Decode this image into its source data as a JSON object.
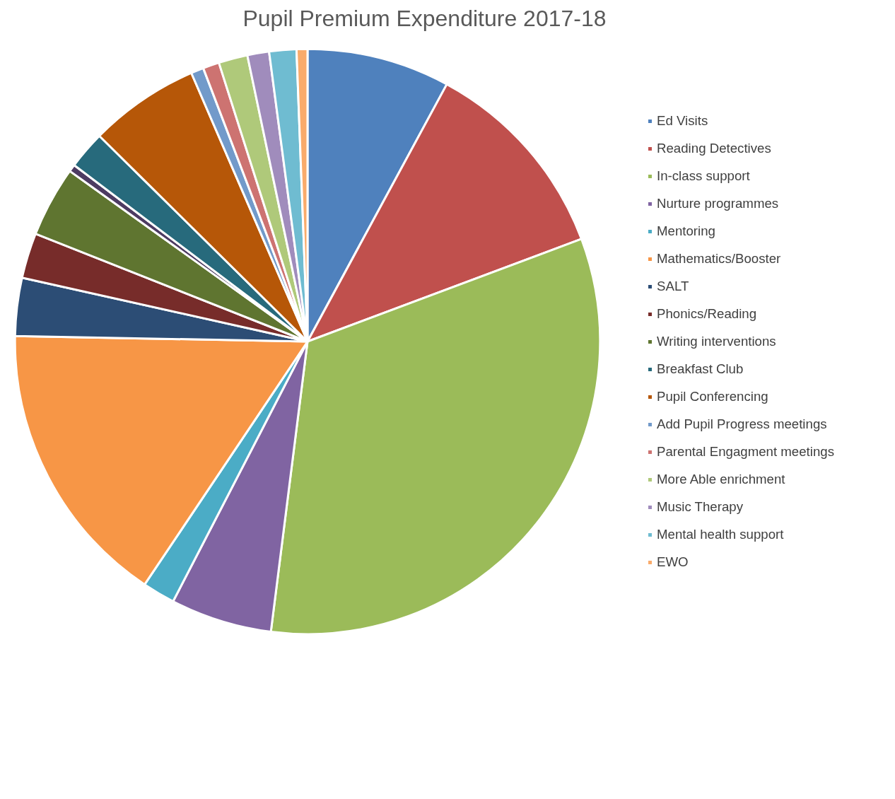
{
  "chart_data": {
    "type": "pie",
    "title": "Pupil Premium Expenditure 2017-18",
    "categories": [
      "Ed Visits",
      "Reading Detectives",
      "In-class support",
      "Nurture programmes",
      "Mentoring",
      "Mathematics/Booster",
      "SALT",
      "Phonics/Reading",
      "Writing interventions",
      null,
      "Breakfast Club",
      "Pupil Conferencing",
      "Add Pupil Progress meetings",
      "Parental Engagment meetings",
      "More Able enrichment",
      "Music Therapy",
      "Mental health support",
      "EWO"
    ],
    "values": [
      7.9,
      11.4,
      32.7,
      5.6,
      1.8,
      15.9,
      3.2,
      2.5,
      3.9,
      0.4,
      2.1,
      6.1,
      0.7,
      0.9,
      1.6,
      1.2,
      1.5,
      0.6
    ],
    "colors": [
      "#4f81bd",
      "#c0504d",
      "#9bbb59",
      "#8064a2",
      "#4bacc6",
      "#f79646",
      "#2c4d75",
      "#772c2a",
      "#5f7530",
      "#4d3b62",
      "#276a7c",
      "#b65708",
      "#729aca",
      "#cd7371",
      "#afc97a",
      "#a08cbc",
      "#6fbcd1",
      "#f9ab6b"
    ],
    "legend": "right"
  }
}
